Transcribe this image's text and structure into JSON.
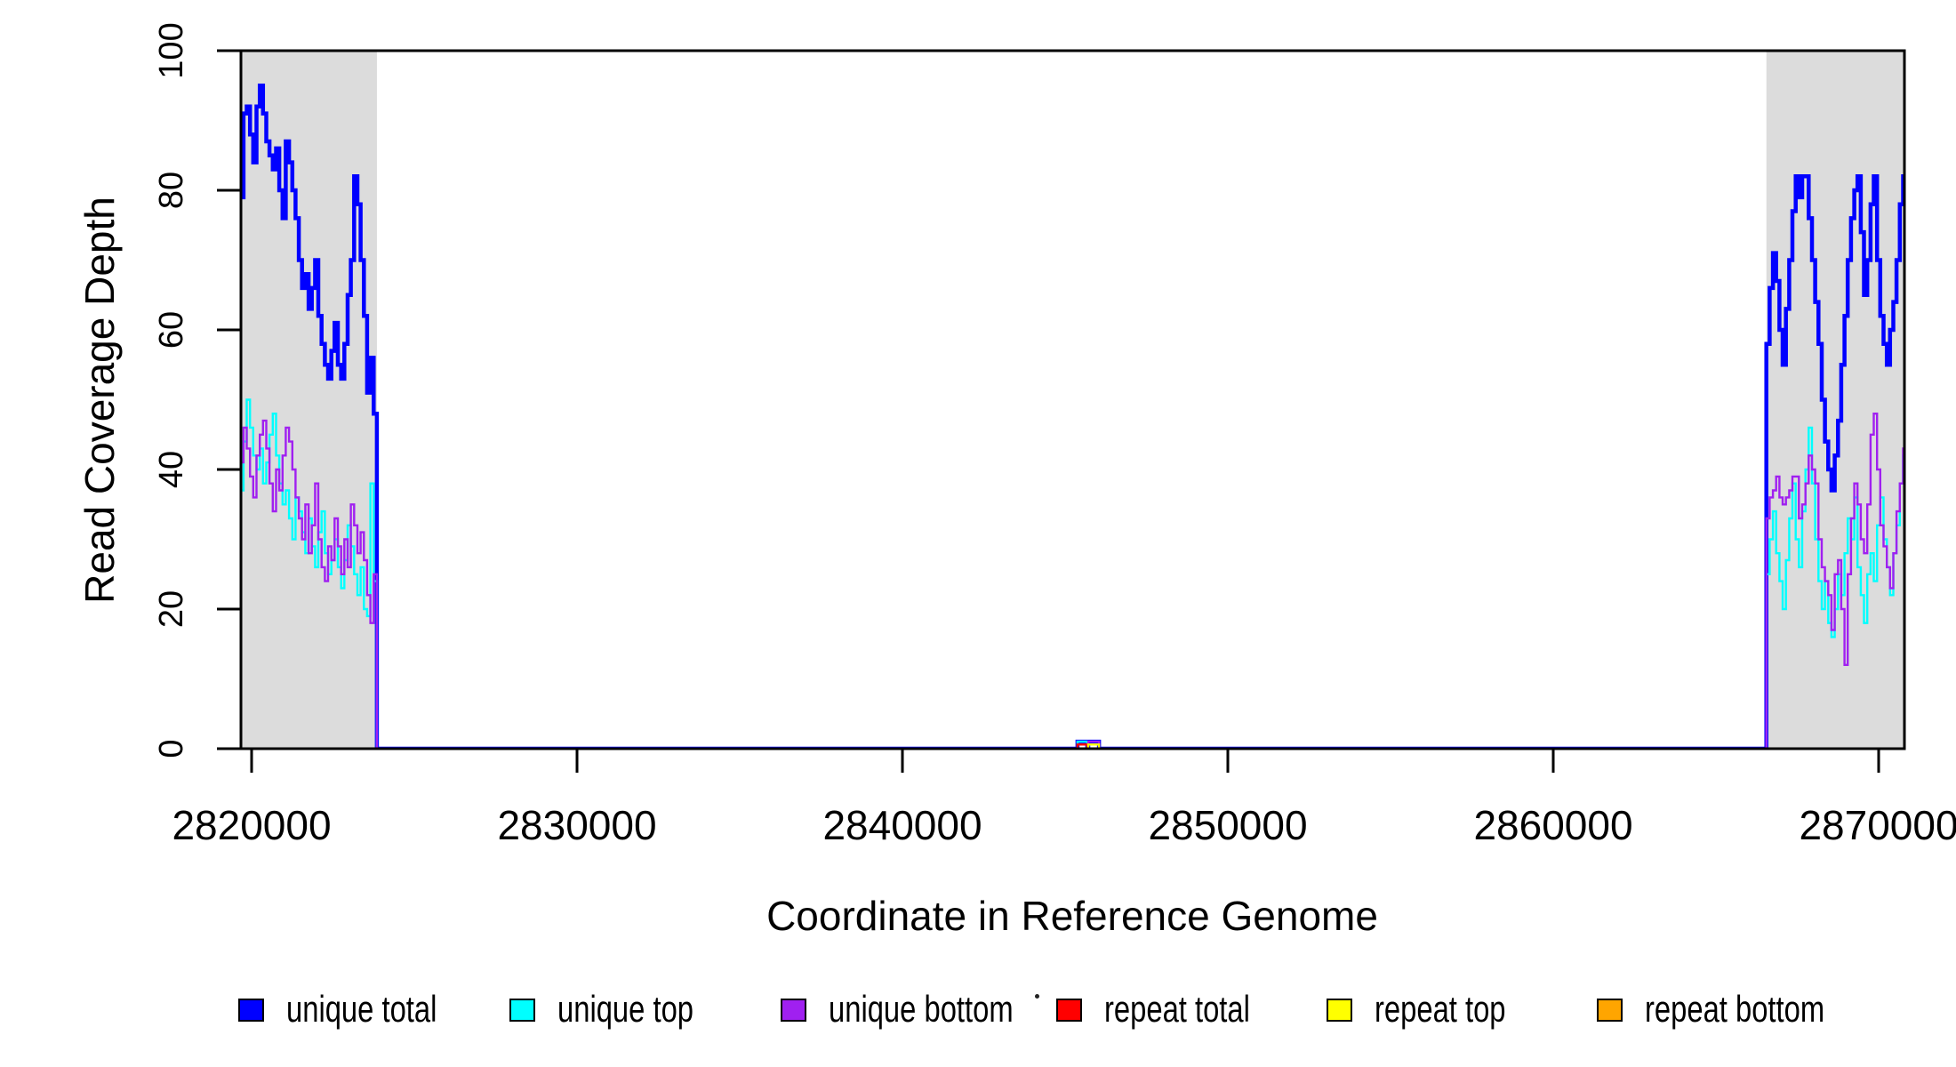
{
  "chart_data": {
    "type": "line",
    "line_style": "step",
    "title": "",
    "xlabel": "Coordinate in Reference Genome",
    "ylabel": "Read Coverage Depth",
    "xlim": [
      2819672,
      2870792
    ],
    "ylim": [
      0,
      100
    ],
    "x_ticks": [
      2820000,
      2830000,
      2840000,
      2850000,
      2860000,
      2870000
    ],
    "y_ticks": [
      0,
      20,
      40,
      60,
      80,
      100
    ],
    "grid": false,
    "background": "#ffffff",
    "box_color": "#000000",
    "highlight_regions": [
      {
        "name": "left-repeat-flank",
        "x0": 2819672,
        "x1": 2823850,
        "color": "#DCDCDC"
      },
      {
        "name": "right-repeat-flank",
        "x0": 2866550,
        "x1": 2870792,
        "color": "#DCDCDC"
      }
    ],
    "series": [
      {
        "name": "unique total",
        "color": "#0000FF",
        "lw": 4.5,
        "paths": [
          [
            {
              "x0": 2819650,
              "step": 100,
              "v": [
                79,
                91,
                92,
                88,
                84,
                92,
                95,
                91,
                87,
                85,
                83,
                86,
                80,
                76,
                87,
                84,
                80,
                76,
                70,
                66,
                68,
                63,
                66,
                70,
                62,
                58,
                55,
                53,
                57,
                61,
                55,
                53,
                58,
                65,
                70,
                82,
                78,
                70,
                62,
                51,
                56,
                48
              ]
            },
            {
              "x": [
                2823850,
                2845380,
                2845680,
                2845710,
                2846040,
                2866550
              ],
              "v": [
                0,
                1,
                0,
                1,
                0
              ]
            },
            {
              "x0": 2866550,
              "step": 100,
              "v": [
                58,
                66,
                71,
                67,
                60,
                55,
                63,
                70,
                77,
                82,
                79,
                82,
                82,
                76,
                70,
                64,
                58,
                50,
                44,
                40,
                37,
                42,
                47,
                55,
                62,
                70,
                76,
                80,
                82,
                74,
                65,
                70,
                78,
                82,
                70,
                62,
                58,
                55,
                60,
                64,
                70,
                78,
                82
              ]
            }
          ]
        ]
      },
      {
        "name": "unique top",
        "color": "#00FFFF",
        "lw": 2.4,
        "paths": [
          [
            {
              "x0": 2819650,
              "step": 100,
              "v": [
                37,
                44,
                50,
                46,
                42,
                40,
                43,
                38,
                41,
                45,
                48,
                42,
                38,
                35,
                37,
                33,
                30,
                36,
                34,
                31,
                28,
                33,
                29,
                26,
                31,
                34,
                28,
                25,
                27,
                30,
                26,
                23,
                27,
                32,
                29,
                25,
                22,
                26,
                20,
                19,
                38,
                24
              ]
            },
            {
              "x": [
                2823850,
                2845380,
                2845680,
                2866550
              ],
              "v": [
                0,
                1,
                0
              ]
            },
            {
              "x0": 2866550,
              "step": 100,
              "v": [
                25,
                30,
                34,
                28,
                24,
                20,
                27,
                33,
                38,
                30,
                26,
                34,
                40,
                46,
                38,
                30,
                24,
                20,
                24,
                18,
                16,
                20,
                25,
                22,
                28,
                33,
                30,
                36,
                26,
                22,
                18,
                25,
                28,
                24,
                32,
                36,
                30,
                26,
                22,
                28,
                32,
                38,
                42
              ]
            }
          ]
        ]
      },
      {
        "name": "unique bottom",
        "color": "#A020F0",
        "lw": 2.4,
        "paths": [
          [
            {
              "x0": 2819650,
              "step": 100,
              "v": [
                41,
                46,
                43,
                39,
                36,
                42,
                45,
                47,
                43,
                38,
                34,
                40,
                37,
                42,
                46,
                44,
                40,
                36,
                33,
                30,
                35,
                28,
                32,
                38,
                30,
                26,
                24,
                29,
                27,
                33,
                29,
                25,
                30,
                26,
                35,
                32,
                28,
                31,
                27,
                22,
                18,
                25
              ]
            },
            {
              "x": [
                2823850,
                2845710,
                2846040,
                2866550
              ],
              "v": [
                0,
                1,
                0
              ]
            },
            {
              "x0": 2866550,
              "step": 100,
              "v": [
                33,
                36,
                37,
                39,
                36,
                35,
                36,
                37,
                39,
                39,
                33,
                35,
                38,
                42,
                40,
                38,
                30,
                26,
                24,
                22,
                17,
                25,
                27,
                20,
                12,
                25,
                33,
                38,
                35,
                30,
                28,
                35,
                45,
                48,
                40,
                32,
                29,
                26,
                23,
                28,
                34,
                38,
                43
              ]
            }
          ]
        ]
      },
      {
        "name": "repeat total",
        "color": "#FF0000",
        "lw": 2.4,
        "paths": [
          [
            {
              "x": [
                2845340,
                2845380,
                2845680,
                2845720
              ],
              "v": [
                0,
                0.6,
                0
              ]
            }
          ]
        ]
      },
      {
        "name": "repeat top",
        "color": "#FFFF00",
        "lw": 2.4,
        "paths": [
          [
            {
              "x": [
                2845670,
                2845710,
                2846040,
                2846080
              ],
              "v": [
                0,
                0.6,
                0
              ]
            }
          ]
        ]
      },
      {
        "name": "repeat bottom",
        "color": "#FFA500",
        "lw": 3,
        "paths": [
          [
            {
              "x": [
                2819650,
                2823850
              ],
              "v": [
                0
              ]
            }
          ],
          [
            {
              "x": [
                2866550,
                2870850
              ],
              "v": [
                0
              ]
            }
          ]
        ]
      }
    ],
    "legend": [
      {
        "label": "unique total",
        "color": "#0000FF"
      },
      {
        "label": "unique top",
        "color": "#00FFFF"
      },
      {
        "label": "unique bottom",
        "color": "#A020F0"
      },
      {
        "label": "repeat total",
        "color": "#FF0000"
      },
      {
        "label": "repeat top",
        "color": "#FFFF00"
      },
      {
        "label": "repeat bottom",
        "color": "#FFA500"
      }
    ],
    "legend_position": "bottom"
  }
}
